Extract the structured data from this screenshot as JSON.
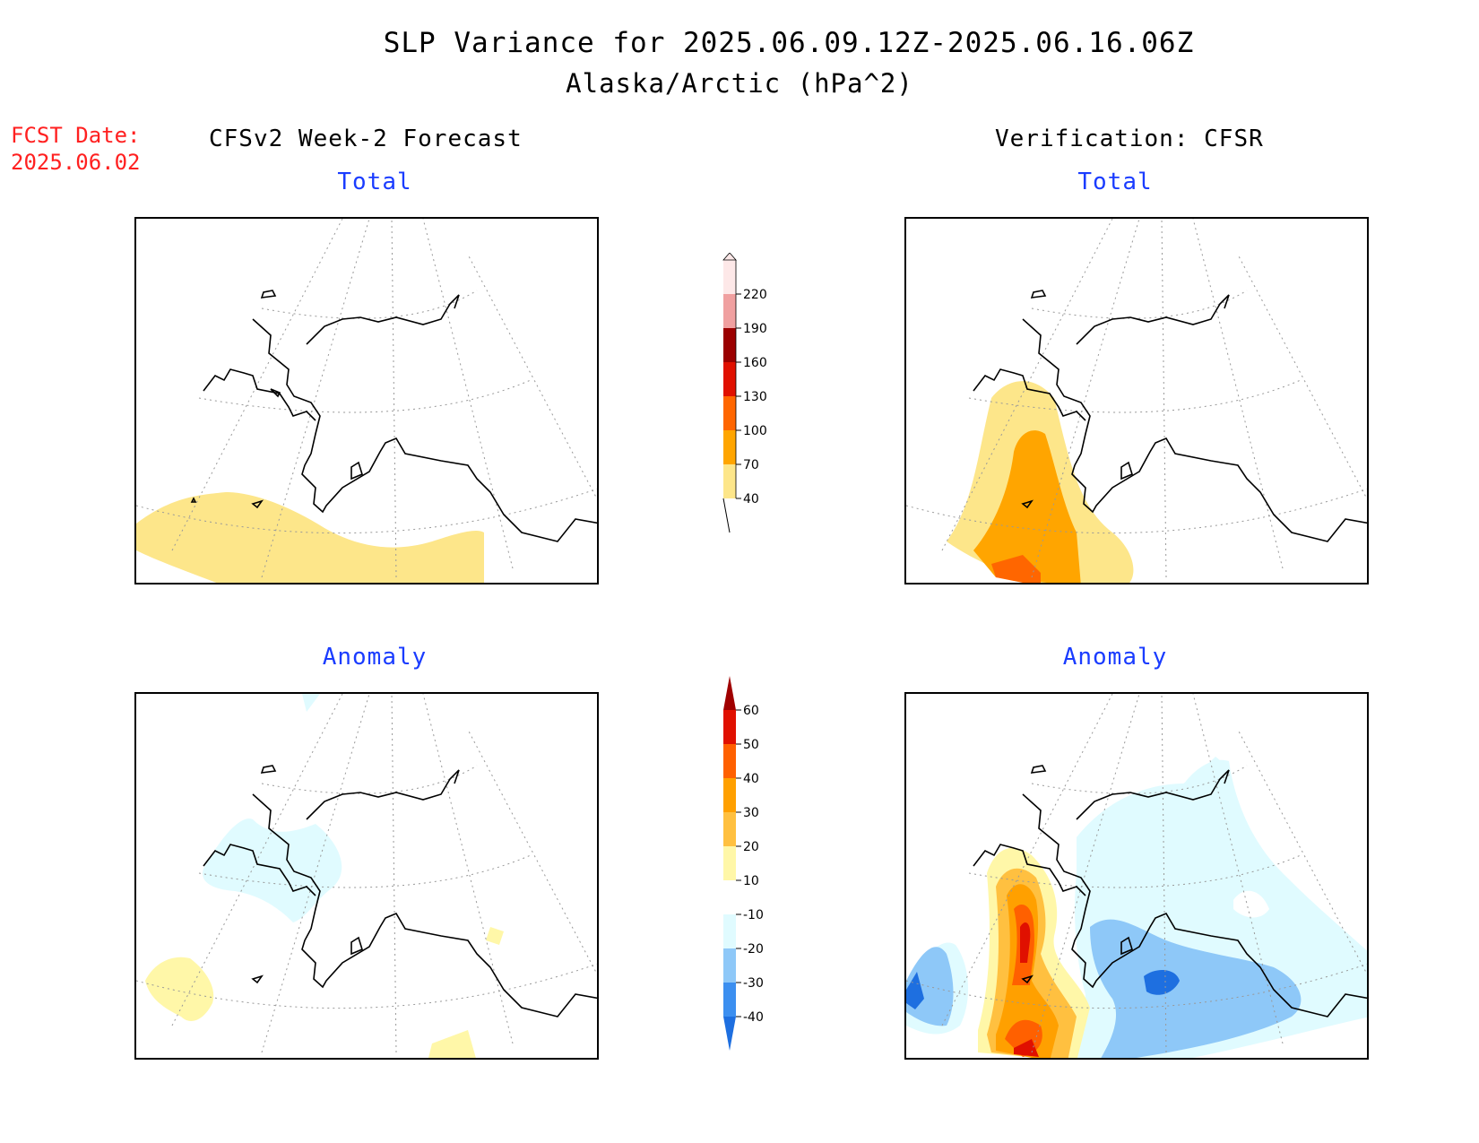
{
  "title": "SLP Variance for 2025.06.09.12Z-2025.06.16.06Z",
  "subtitle": "Alaska/Arctic (hPa^2)",
  "fcst_date_label": "FCST Date:",
  "fcst_date_value": "2025.06.02",
  "left_column_title": "CFSv2 Week-2 Forecast",
  "right_column_title": "Verification: CFSR",
  "panels": {
    "top_left_title": "Total",
    "top_right_title": "Total",
    "bottom_left_title": "Anomaly",
    "bottom_right_title": "Anomaly"
  },
  "colorbar_total": {
    "levels": [
      "40",
      "70",
      "100",
      "130",
      "160",
      "190",
      "220"
    ],
    "colors": [
      "#fde68a",
      "#ffa500",
      "#ff6600",
      "#e01000",
      "#9b0000",
      "#f0a0a0",
      "#fde8e8"
    ]
  },
  "colorbar_anomaly": {
    "levels": [
      "-40",
      "-30",
      "-20",
      "-10",
      "10",
      "20",
      "30",
      "40",
      "50",
      "60"
    ],
    "colors": [
      "#1e6fe0",
      "#3c8ff0",
      "#8ec8f8",
      "#e0fbff",
      "#ffffff",
      "#fff7a8",
      "#ffc040",
      "#ffa000",
      "#ff6000",
      "#e01000",
      "#a00000"
    ]
  }
}
